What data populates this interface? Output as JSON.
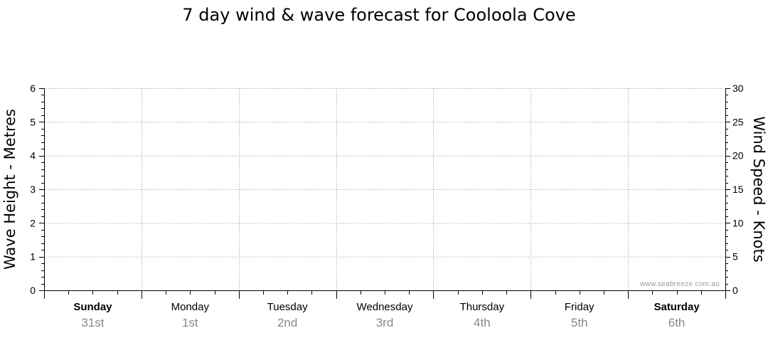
{
  "chart_data": {
    "type": "line",
    "title": "7 day wind & wave forecast for Cooloola Cove",
    "ylabel_left": "Wave Height - Metres",
    "ylabel_right": "Wind Speed - Knots",
    "ylim_left": [
      0,
      6
    ],
    "ylim_right": [
      0,
      30
    ],
    "left_ticks": [
      "0",
      "1",
      "2",
      "3",
      "4",
      "5",
      "6"
    ],
    "right_ticks": [
      "0",
      "5",
      "10",
      "15",
      "20",
      "25",
      "30"
    ],
    "grid": true,
    "days": [
      {
        "name": "Sunday",
        "date": "31st",
        "bold": true
      },
      {
        "name": "Monday",
        "date": "1st",
        "bold": false
      },
      {
        "name": "Tuesday",
        "date": "2nd",
        "bold": false
      },
      {
        "name": "Wednesday",
        "date": "3rd",
        "bold": false
      },
      {
        "name": "Thursday",
        "date": "4th",
        "bold": false
      },
      {
        "name": "Friday",
        "date": "5th",
        "bold": false
      },
      {
        "name": "Saturday",
        "date": "6th",
        "bold": true
      }
    ],
    "series": [],
    "watermark": "www.seabreeze.com.au"
  }
}
